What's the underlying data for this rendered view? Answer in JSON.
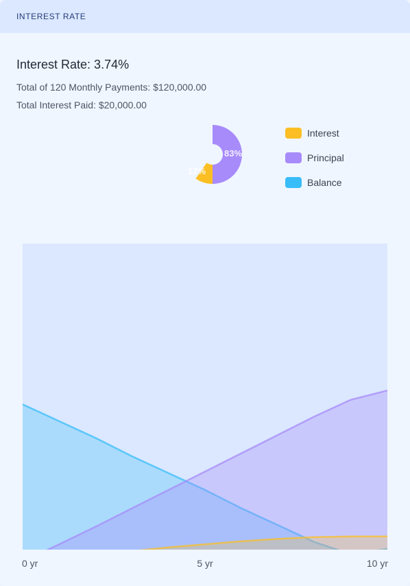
{
  "header": {
    "title": "INTEREST RATE"
  },
  "summary": {
    "rate": "Interest Rate: 3.74%",
    "payments": "Total of 120 Monthly Payments: $120,000.00",
    "interest": "Total Interest Paid: $20,000.00"
  },
  "legend": [
    {
      "label": "Interest",
      "color": "#fbbf24"
    },
    {
      "label": "Principal",
      "color": "#a78bfa"
    },
    {
      "label": "Balance",
      "color": "#38bdf8"
    }
  ],
  "colors": {
    "interest": "#fbbf24",
    "principal": "#a78bfa",
    "balance": "#38bdf8",
    "plot_bg": "#dbe8ff"
  },
  "chart_data": [
    {
      "type": "pie",
      "labels": [
        "Interest",
        "Principal"
      ],
      "values": [
        17,
        83
      ],
      "slice_labels": [
        "17%",
        "83%"
      ]
    },
    {
      "type": "area",
      "x": [
        0,
        1,
        2,
        3,
        4,
        5,
        6,
        7,
        8,
        9,
        10
      ],
      "x_ticks": [
        0,
        5,
        10
      ],
      "x_tick_labels": [
        "0 yr",
        "5 yr",
        "10 yr"
      ],
      "xlim": [
        0,
        10
      ],
      "ylim": [
        0,
        200000
      ],
      "legend_position": "top-right",
      "grid": false,
      "series": [
        {
          "name": "Interest",
          "values": [
            -8000,
            -6000,
            -3500,
            -1000,
            1500,
            3500,
            5500,
            7000,
            8200,
            8600,
            8600
          ]
        },
        {
          "name": "Principal",
          "values": [
            -8000,
            3500,
            15000,
            27000,
            39000,
            51000,
            63000,
            75000,
            87000,
            98000,
            104000
          ]
        },
        {
          "name": "Balance",
          "values": [
            95000,
            84000,
            73000,
            61000,
            50000,
            39000,
            27000,
            16000,
            5000,
            -3000,
            500
          ]
        }
      ]
    }
  ]
}
